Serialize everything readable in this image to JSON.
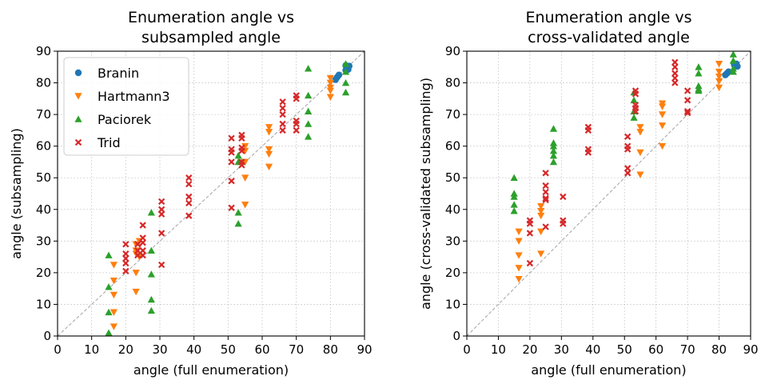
{
  "chart_data": [
    {
      "type": "scatter",
      "title": "Enumeration angle vs\nsubsampled angle",
      "xlabel": "angle (full enumeration)",
      "ylabel": "angle (subsampling)",
      "xlim": [
        0,
        90
      ],
      "ylim": [
        0,
        90
      ],
      "xticks": [
        0,
        10,
        20,
        30,
        40,
        50,
        60,
        70,
        80,
        90
      ],
      "yticks": [
        0,
        10,
        20,
        30,
        40,
        50,
        60,
        70,
        80,
        90
      ],
      "grid": true,
      "legend": "upper-left",
      "diagonal": true,
      "series": [
        {
          "name": "Branin",
          "color": "#1f77b4",
          "marker": "circle",
          "points": [
            [
              81.5,
              81
            ],
            [
              82,
              81.8
            ],
            [
              82.5,
              82.5
            ],
            [
              84.5,
              84
            ],
            [
              85,
              84.8
            ],
            [
              85.5,
              85.3
            ],
            [
              84.5,
              85.5
            ],
            [
              85.2,
              84.2
            ]
          ]
        },
        {
          "name": "Hartmann3",
          "color": "#ff7f0e",
          "marker": "triangle-down",
          "points": [
            [
              16.5,
              22.5
            ],
            [
              16.5,
              17.5
            ],
            [
              16.5,
              13
            ],
            [
              16.5,
              7.5
            ],
            [
              16.5,
              3
            ],
            [
              23,
              29
            ],
            [
              23,
              27
            ],
            [
              23,
              26
            ],
            [
              23,
              20
            ],
            [
              23,
              14
            ],
            [
              24,
              30
            ],
            [
              24,
              25
            ],
            [
              55,
              60
            ],
            [
              55,
              58.5
            ],
            [
              55,
              55
            ],
            [
              55,
              50
            ],
            [
              55,
              41.5
            ],
            [
              62,
              66
            ],
            [
              62,
              64.5
            ],
            [
              62,
              59
            ],
            [
              62,
              57.5
            ],
            [
              62,
              53.5
            ],
            [
              80,
              81.5
            ],
            [
              80,
              80
            ],
            [
              80,
              78.5
            ],
            [
              80,
              77.5
            ],
            [
              80,
              75.5
            ]
          ]
        },
        {
          "name": "Paciorek",
          "color": "#2ca02c",
          "marker": "triangle-up",
          "points": [
            [
              15,
              25.5
            ],
            [
              15,
              15.5
            ],
            [
              15,
              7.5
            ],
            [
              15,
              1
            ],
            [
              27.5,
              39
            ],
            [
              27.5,
              27
            ],
            [
              27.5,
              19.5
            ],
            [
              27.5,
              11.5
            ],
            [
              27.5,
              8
            ],
            [
              53,
              57
            ],
            [
              53,
              55
            ],
            [
              53,
              39
            ],
            [
              53,
              35.5
            ],
            [
              54,
              55
            ],
            [
              73.5,
              84.5
            ],
            [
              73.5,
              76
            ],
            [
              73.5,
              71
            ],
            [
              73.5,
              67
            ],
            [
              73.5,
              63
            ],
            [
              84.5,
              86
            ],
            [
              84.5,
              83.5
            ],
            [
              84.5,
              80
            ],
            [
              84.5,
              77
            ]
          ]
        },
        {
          "name": "Trid",
          "color": "#d62728",
          "marker": "x",
          "points": [
            [
              20,
              29
            ],
            [
              20,
              26
            ],
            [
              20,
              24.5
            ],
            [
              20,
              23
            ],
            [
              20,
              20.5
            ],
            [
              23.5,
              29
            ],
            [
              23.5,
              27
            ],
            [
              23.5,
              25.5
            ],
            [
              25,
              35
            ],
            [
              25,
              31
            ],
            [
              25,
              29.5
            ],
            [
              25,
              27
            ],
            [
              25,
              25.5
            ],
            [
              30.5,
              42.5
            ],
            [
              30.5,
              40
            ],
            [
              30.5,
              38.5
            ],
            [
              30.5,
              32.5
            ],
            [
              30.5,
              22.5
            ],
            [
              38.5,
              50
            ],
            [
              38.5,
              48
            ],
            [
              38.5,
              44
            ],
            [
              38.5,
              42
            ],
            [
              38.5,
              38
            ],
            [
              51,
              62.5
            ],
            [
              51,
              59
            ],
            [
              51,
              58
            ],
            [
              51,
              55
            ],
            [
              51,
              49
            ],
            [
              51,
              40.5
            ],
            [
              54,
              63.5
            ],
            [
              54,
              62.5
            ],
            [
              54,
              59.5
            ],
            [
              54,
              58.5
            ],
            [
              54,
              55
            ],
            [
              54,
              54
            ],
            [
              66,
              74
            ],
            [
              66,
              72
            ],
            [
              66,
              70
            ],
            [
              66,
              67
            ],
            [
              66,
              65
            ],
            [
              70,
              76
            ],
            [
              70,
              75
            ],
            [
              70,
              68
            ],
            [
              70,
              67
            ],
            [
              70,
              65
            ]
          ]
        }
      ]
    },
    {
      "type": "scatter",
      "title": "Enumeration angle vs\ncross-validated angle",
      "xlabel": "angle (full enumeration)",
      "ylabel": "angle (cross-validated subsampling)",
      "xlim": [
        0,
        90
      ],
      "ylim": [
        0,
        90
      ],
      "xticks": [
        0,
        10,
        20,
        30,
        40,
        50,
        60,
        70,
        80,
        90
      ],
      "yticks": [
        0,
        10,
        20,
        30,
        40,
        50,
        60,
        70,
        80,
        90
      ],
      "grid": true,
      "legend": "none",
      "diagonal": true,
      "series": [
        {
          "name": "Branin",
          "color": "#1f77b4",
          "marker": "circle",
          "points": [
            [
              82,
              82.5
            ],
            [
              82.5,
              83
            ],
            [
              83,
              83.5
            ],
            [
              85,
              85.5
            ],
            [
              85.5,
              86
            ],
            [
              85.8,
              85.2
            ],
            [
              84.8,
              85.7
            ]
          ]
        },
        {
          "name": "Hartmann3",
          "color": "#ff7f0e",
          "marker": "triangle-down",
          "points": [
            [
              16.5,
              33
            ],
            [
              16.5,
              30
            ],
            [
              16.5,
              25.5
            ],
            [
              16.5,
              21.5
            ],
            [
              16.5,
              18
            ],
            [
              23.5,
              41
            ],
            [
              23.5,
              39.5
            ],
            [
              23.5,
              38
            ],
            [
              23.5,
              33
            ],
            [
              23.5,
              26
            ],
            [
              55,
              66
            ],
            [
              55,
              64.5
            ],
            [
              55,
              58
            ],
            [
              55,
              51
            ],
            [
              62,
              73.5
            ],
            [
              62,
              72.5
            ],
            [
              62,
              70
            ],
            [
              62,
              66.5
            ],
            [
              62,
              60
            ],
            [
              80,
              86
            ],
            [
              80,
              83.5
            ],
            [
              80,
              82
            ],
            [
              80,
              80.5
            ],
            [
              80,
              78.5
            ]
          ]
        },
        {
          "name": "Paciorek",
          "color": "#2ca02c",
          "marker": "triangle-up",
          "points": [
            [
              15,
              50
            ],
            [
              15,
              45
            ],
            [
              15,
              44
            ],
            [
              15,
              41.5
            ],
            [
              15,
              39.5
            ],
            [
              27.5,
              65.5
            ],
            [
              27.5,
              61
            ],
            [
              27.5,
              60
            ],
            [
              27.5,
              58.5
            ],
            [
              27.5,
              57
            ],
            [
              27.5,
              55
            ],
            [
              53,
              77
            ],
            [
              53,
              74.5
            ],
            [
              53,
              71
            ],
            [
              53,
              69
            ],
            [
              73.5,
              85
            ],
            [
              73.5,
              83
            ],
            [
              73.5,
              79
            ],
            [
              73.5,
              78
            ],
            [
              73.5,
              77.5
            ],
            [
              84.5,
              89
            ],
            [
              84.5,
              87
            ],
            [
              84.5,
              84.5
            ],
            [
              84.5,
              83.5
            ]
          ]
        },
        {
          "name": "Trid",
          "color": "#d62728",
          "marker": "x",
          "points": [
            [
              20,
              36.5
            ],
            [
              20,
              35.5
            ],
            [
              20,
              32.5
            ],
            [
              20,
              23
            ],
            [
              25,
              51.5
            ],
            [
              25,
              47.5
            ],
            [
              25,
              45.5
            ],
            [
              25,
              43.5
            ],
            [
              25,
              43
            ],
            [
              25,
              34.5
            ],
            [
              30.5,
              44
            ],
            [
              30.5,
              36.5
            ],
            [
              30.5,
              35.5
            ],
            [
              38.5,
              66
            ],
            [
              38.5,
              65
            ],
            [
              38.5,
              59
            ],
            [
              38.5,
              58
            ],
            [
              51,
              63
            ],
            [
              51,
              60
            ],
            [
              51,
              59
            ],
            [
              51,
              53
            ],
            [
              51,
              51.5
            ],
            [
              53.5,
              77.5
            ],
            [
              53.5,
              76.5
            ],
            [
              53.5,
              73
            ],
            [
              53.5,
              72
            ],
            [
              53.5,
              71
            ],
            [
              66,
              86.5
            ],
            [
              66,
              85
            ],
            [
              66,
              83
            ],
            [
              66,
              81.5
            ],
            [
              66,
              80
            ],
            [
              70,
              77.5
            ],
            [
              70,
              74.5
            ],
            [
              70,
              71
            ],
            [
              70,
              70.5
            ]
          ]
        }
      ]
    }
  ]
}
